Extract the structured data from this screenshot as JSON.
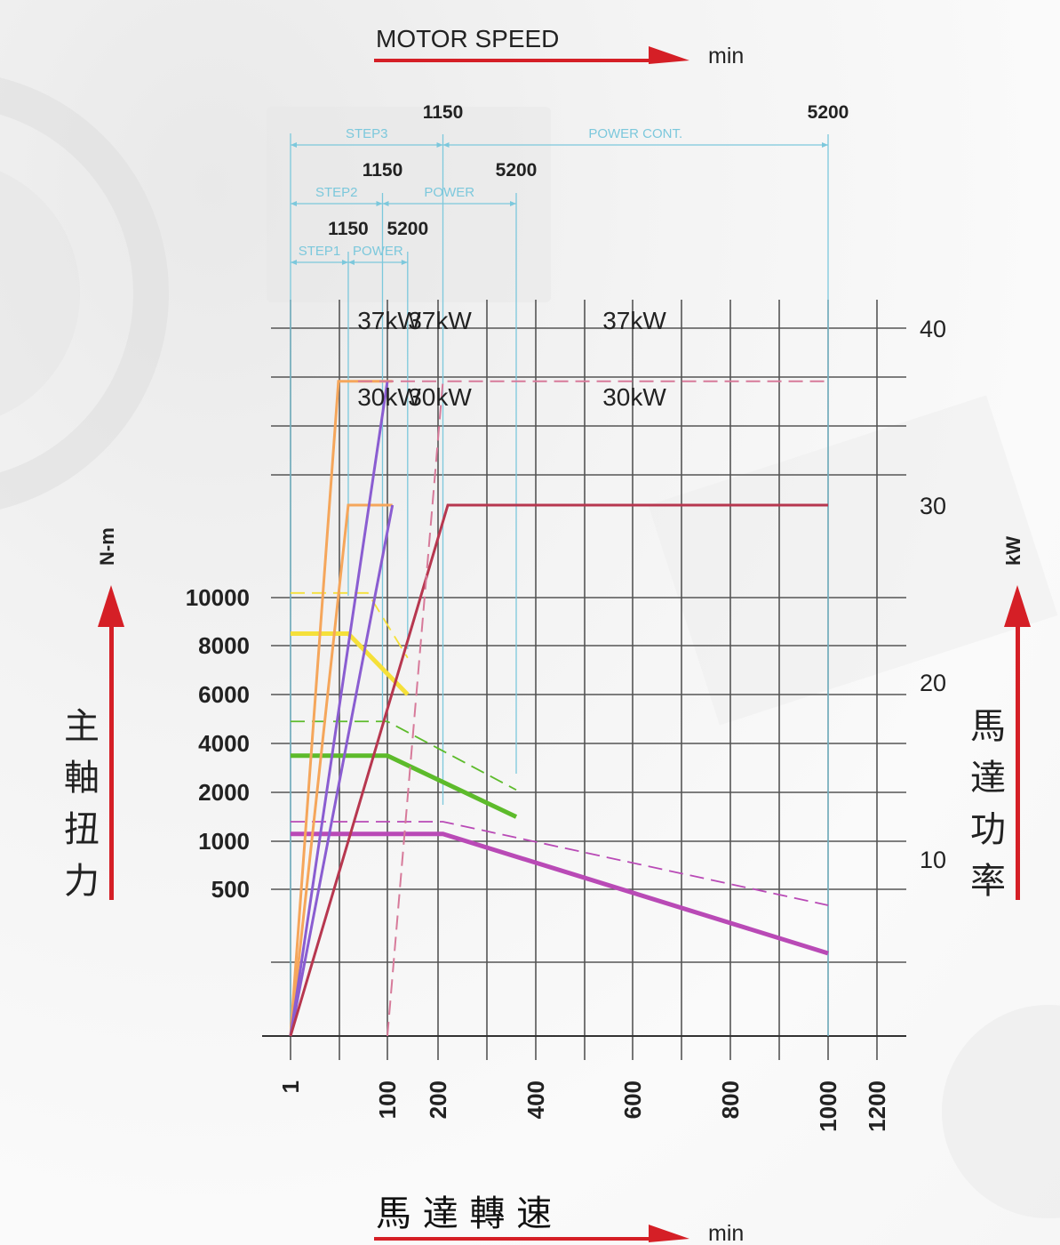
{
  "header": {
    "title": "MOTOR SPEED",
    "unit": "min"
  },
  "footer": {
    "title": "馬 達 轉 速",
    "unit": "min"
  },
  "left_axis": {
    "unit": "N-m",
    "title_chars": [
      "主",
      "軸",
      "扭",
      "力"
    ]
  },
  "right_axis": {
    "unit": "kW",
    "title_chars": [
      "馬",
      "達",
      "功",
      "率"
    ]
  },
  "ranges": [
    {
      "name": "STEP3",
      "start_label": "",
      "end_label": "1150",
      "from": 1,
      "to": 210
    },
    {
      "name": "POWER CONT.",
      "start_label": "",
      "end_label": "5200",
      "from": 210,
      "to": 1000
    },
    {
      "name": "STEP2",
      "start_label": "1150",
      "end_label": "",
      "from": 1,
      "to": 95
    },
    {
      "name": "POWER",
      "start_label": "",
      "end_label": "5200",
      "from": 95,
      "to": 360
    },
    {
      "name": "STEP1",
      "start_label": "1150",
      "end_label": "",
      "from": 1,
      "to": 60
    },
    {
      "name": "POWER",
      "start_label": "",
      "end_label": "5200",
      "from": 60,
      "to": 140
    }
  ],
  "power_labels": [
    {
      "text": "37kW",
      "x": 100,
      "kw": 37
    },
    {
      "text": "37kW",
      "x": 200,
      "kw": 37
    },
    {
      "text": "37kW",
      "x": 600,
      "kw": 37
    },
    {
      "text": "30kW",
      "x": 100,
      "kw": 26
    },
    {
      "text": "30kW",
      "x": 200,
      "kw": 26
    },
    {
      "text": "30kW",
      "x": 600,
      "kw": 26
    }
  ],
  "chart_data": {
    "type": "line",
    "x": {
      "label": "馬達轉速",
      "unit": "min",
      "ticks": [
        1,
        100,
        200,
        400,
        600,
        800,
        1000,
        1200
      ]
    },
    "y_left": {
      "label": "主軸扭力",
      "unit": "N-m",
      "ticks": [
        500,
        1000,
        2000,
        4000,
        6000,
        8000,
        10000
      ]
    },
    "y_right": {
      "label": "馬達功率",
      "unit": "kW",
      "ticks": [
        10,
        20,
        30,
        40
      ],
      "ylim": [
        0,
        40
      ]
    },
    "grid": true,
    "torque_series": [
      {
        "color": "#f5e03a",
        "style": "solid",
        "points": [
          [
            1,
            8500
          ],
          [
            60,
            8500
          ],
          [
            140,
            6000
          ]
        ]
      },
      {
        "color": "#f5e03a",
        "style": "dashed",
        "points": [
          [
            1,
            10200
          ],
          [
            80,
            10200
          ],
          [
            140,
            7500
          ]
        ]
      },
      {
        "color": "#5dbb2b",
        "style": "solid",
        "points": [
          [
            1,
            3500
          ],
          [
            100,
            3500
          ],
          [
            360,
            1500
          ]
        ]
      },
      {
        "color": "#5dbb2b",
        "style": "dashed",
        "points": [
          [
            1,
            4900
          ],
          [
            100,
            4900
          ],
          [
            360,
            2100
          ]
        ]
      },
      {
        "color": "#b94ab6",
        "style": "solid",
        "points": [
          [
            1,
            1150
          ],
          [
            210,
            1150
          ],
          [
            1000,
            380
          ]
        ]
      },
      {
        "color": "#b94ab6",
        "style": "dashed",
        "points": [
          [
            1,
            1400
          ],
          [
            210,
            1400
          ],
          [
            1000,
            470
          ]
        ]
      }
    ],
    "power_series": [
      {
        "color": "#f5a65b",
        "style": "solid",
        "points": [
          [
            1,
            0
          ],
          [
            50,
            37
          ],
          [
            110,
            37
          ]
        ]
      },
      {
        "color": "#f5a65b",
        "style": "solid",
        "points": [
          [
            1,
            0
          ],
          [
            60,
            30
          ],
          [
            110,
            30
          ]
        ]
      },
      {
        "color": "#8a5dd1",
        "style": "solid",
        "points": [
          [
            1,
            0
          ],
          [
            100,
            37
          ]
        ]
      },
      {
        "color": "#8a5dd1",
        "style": "solid",
        "points": [
          [
            1,
            0
          ],
          [
            110,
            30
          ]
        ]
      },
      {
        "color": "#b7374f",
        "style": "solid",
        "points": [
          [
            1,
            0
          ],
          [
            220,
            30
          ],
          [
            1000,
            30
          ]
        ]
      },
      {
        "color": "#d77a9a",
        "style": "dashed",
        "points": [
          [
            100,
            0
          ],
          [
            210,
            37
          ],
          [
            1000,
            37
          ]
        ]
      },
      {
        "color": "#d77a9a",
        "style": "dashed",
        "points": [
          [
            70,
            37
          ],
          [
            210,
            37
          ]
        ]
      }
    ]
  }
}
